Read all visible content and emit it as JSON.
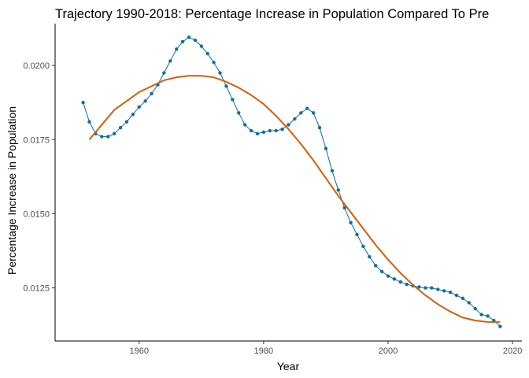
{
  "chart_data": {
    "type": "line",
    "title": "Trajectory 1990-2018: Percentage Increase in Population Compared To Pre",
    "x_label": "Year",
    "y_label": "Percentage Increase in Population",
    "xlim": [
      1946.5,
      2021.5
    ],
    "xticks": [
      1960,
      1980,
      2000,
      2020
    ],
    "ylim": [
      0.01071,
      0.02141
    ],
    "yticks": [
      0.0125,
      {
        "value": 0.015,
        "label": "0.0150"
      },
      0.0175,
      {
        "value": 0.02,
        "label": "0.0200"
      }
    ],
    "grid": false,
    "series": [
      {
        "color": "#0f6ea3",
        "markers": true,
        "x": [
          1951,
          1952,
          1953,
          1954,
          1955,
          1956,
          1957,
          1958,
          1959,
          1960,
          1961,
          1962,
          1963,
          1964,
          1965,
          1966,
          1967,
          1968,
          1969,
          1970,
          1971,
          1972,
          1973,
          1974,
          1975,
          1976,
          1977,
          1978,
          1979,
          1980,
          1981,
          1982,
          1983,
          1984,
          1985,
          1986,
          1987,
          1988,
          1989,
          1990,
          1991,
          1992,
          1993,
          1994,
          1995,
          1996,
          1997,
          1998,
          1999,
          2000,
          2001,
          2002,
          2003,
          2004,
          2005,
          2006,
          2007,
          2008,
          2009,
          2010,
          2011,
          2012,
          2013,
          2014,
          2015,
          2016,
          2017,
          2018
        ],
        "values": [
          0.01875,
          0.0181,
          0.0177,
          0.0176,
          0.0176,
          0.0177,
          0.0179,
          0.0181,
          0.01835,
          0.0186,
          0.0188,
          0.01905,
          0.01935,
          0.01975,
          0.02015,
          0.02055,
          0.0208,
          0.02095,
          0.02085,
          0.02065,
          0.0204,
          0.0201,
          0.01975,
          0.0193,
          0.01885,
          0.0184,
          0.018,
          0.0178,
          0.0177,
          0.01775,
          0.0178,
          0.0178,
          0.01785,
          0.018,
          0.0182,
          0.0184,
          0.01855,
          0.0184,
          0.0179,
          0.0172,
          0.01645,
          0.0158,
          0.0152,
          0.0147,
          0.0143,
          0.0139,
          0.01355,
          0.01325,
          0.01305,
          0.0129,
          0.0128,
          0.0127,
          0.01262,
          0.01257,
          0.01253,
          0.0125,
          0.0125,
          0.01245,
          0.0124,
          0.01235,
          0.01225,
          0.01215,
          0.012,
          0.0118,
          0.0116,
          0.01155,
          0.0114,
          0.0112
        ]
      },
      {
        "color": "#d35f0a",
        "markers": false,
        "x": [
          1952,
          1954,
          1956,
          1958,
          1960,
          1962,
          1964,
          1966,
          1968,
          1970,
          1972,
          1974,
          1976,
          1978,
          1980,
          1982,
          1984,
          1986,
          1988,
          1990,
          1992,
          1994,
          1996,
          1998,
          2000,
          2002,
          2004,
          2006,
          2008,
          2010,
          2012,
          2014,
          2016,
          2018
        ],
        "values": [
          0.0175,
          0.018,
          0.0185,
          0.0188,
          0.0191,
          0.0193,
          0.0195,
          0.0196,
          0.01965,
          0.01965,
          0.0196,
          0.01945,
          0.01925,
          0.019,
          0.0187,
          0.0183,
          0.01785,
          0.01735,
          0.0168,
          0.0162,
          0.0156,
          0.01505,
          0.0145,
          0.01395,
          0.01345,
          0.013,
          0.0126,
          0.01225,
          0.01195,
          0.0117,
          0.0115,
          0.0114,
          0.01135,
          0.01135
        ]
      }
    ]
  }
}
